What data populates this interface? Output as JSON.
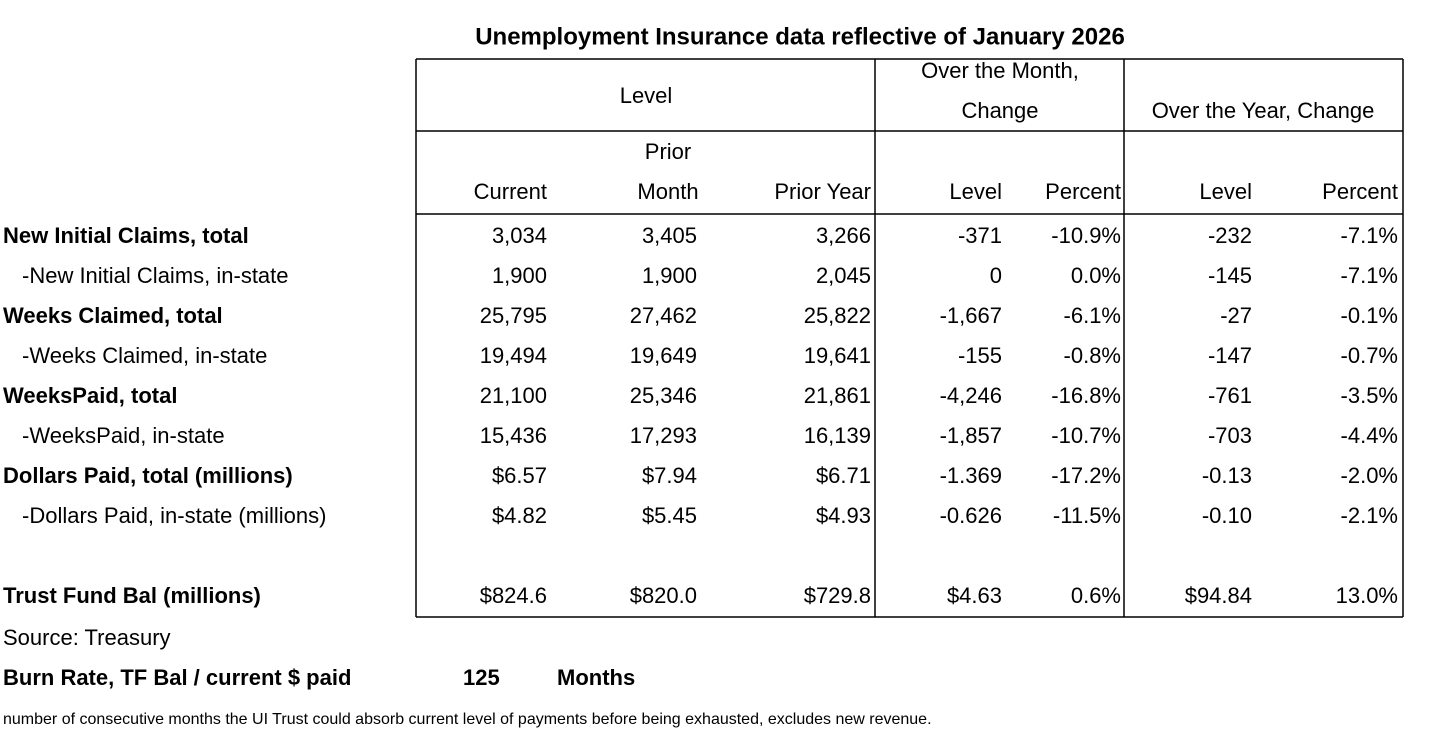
{
  "title": "Unemployment Insurance data reflective of January 2026",
  "header": {
    "level": "Level",
    "month_change": [
      "Over the Month,",
      "Change"
    ],
    "year_change": "Over the Year, Change"
  },
  "columns": [
    [
      "Current"
    ],
    [
      "Prior",
      "Month"
    ],
    [
      "Prior Year"
    ],
    [
      "Level"
    ],
    [
      "Percent"
    ],
    [
      "Level"
    ],
    [
      "Percent"
    ]
  ],
  "rows": [
    {
      "label": "New Initial Claims, total",
      "bold": true,
      "values": [
        "3,034",
        "3,405",
        "3,266",
        "-371",
        "-10.9%",
        "-232",
        "-7.1%"
      ]
    },
    {
      "label": "-New Initial Claims, in-state",
      "bold": false,
      "values": [
        "1,900",
        "1,900",
        "2,045",
        "0",
        "0.0%",
        "-145",
        "-7.1%"
      ]
    },
    {
      "label": "Weeks Claimed, total",
      "bold": true,
      "values": [
        "25,795",
        "27,462",
        "25,822",
        "-1,667",
        "-6.1%",
        "-27",
        "-0.1%"
      ]
    },
    {
      "label": "-Weeks Claimed, in-state",
      "bold": false,
      "values": [
        "19,494",
        "19,649",
        "19,641",
        "-155",
        "-0.8%",
        "-147",
        "-0.7%"
      ]
    },
    {
      "label": "WeeksPaid, total",
      "bold": true,
      "values": [
        "21,100",
        "25,346",
        "21,861",
        "-4,246",
        "-16.8%",
        "-761",
        "-3.5%"
      ]
    },
    {
      "label": "-WeeksPaid, in-state",
      "bold": false,
      "values": [
        "15,436",
        "17,293",
        "16,139",
        "-1,857",
        "-10.7%",
        "-703",
        "-4.4%"
      ]
    },
    {
      "label": "Dollars Paid, total (millions)",
      "bold": true,
      "values": [
        "$6.57",
        "$7.94",
        "$6.71",
        "-1.369",
        "-17.2%",
        "-0.13",
        "-2.0%"
      ]
    },
    {
      "label": "-Dollars Paid, in-state (millions)",
      "bold": false,
      "values": [
        "$4.82",
        "$5.45",
        "$4.93",
        "-0.626",
        "-11.5%",
        "-0.10",
        "-2.1%"
      ]
    },
    {
      "label": "Trust Fund Bal (millions)",
      "bold": true,
      "values": [
        "$824.6",
        "$820.0",
        "$729.8",
        "$4.63",
        "0.6%",
        "$94.84",
        "13.0%"
      ]
    }
  ],
  "source": "Source: Treasury",
  "burn_rate": {
    "label": "Burn Rate, TF Bal / current $ paid",
    "value": "125",
    "unit": "Months"
  },
  "note": "number of consecutive months the UI Trust could absorb current level of payments before being exhausted, excludes new revenue."
}
